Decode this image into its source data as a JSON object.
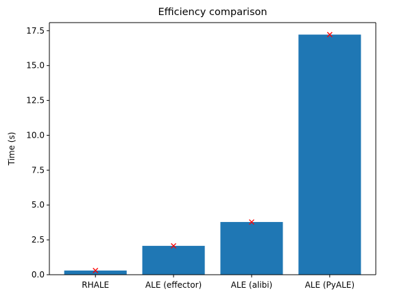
{
  "chart_data": {
    "type": "bar",
    "title": "Efficiency comparison",
    "xlabel": "",
    "ylabel": "Time (s)",
    "categories": [
      "RHALE",
      "ALE (effector)",
      "ALE (alibi)",
      "ALE (PyALE)"
    ],
    "values": [
      0.3,
      2.07,
      3.78,
      17.22
    ],
    "markers": [
      0.3,
      2.07,
      3.78,
      17.22
    ],
    "ylim": [
      0,
      18.08
    ],
    "yticks": [
      0.0,
      2.5,
      5.0,
      7.5,
      10.0,
      12.5,
      15.0,
      17.5
    ],
    "ytick_labels": [
      "0.0",
      "2.5",
      "5.0",
      "7.5",
      "10.0",
      "12.5",
      "15.0",
      "17.5"
    ],
    "bar_color": "#1f77b4",
    "marker_color": "#ff0000",
    "marker_symbol": "x",
    "grid": false,
    "legend": "none"
  }
}
